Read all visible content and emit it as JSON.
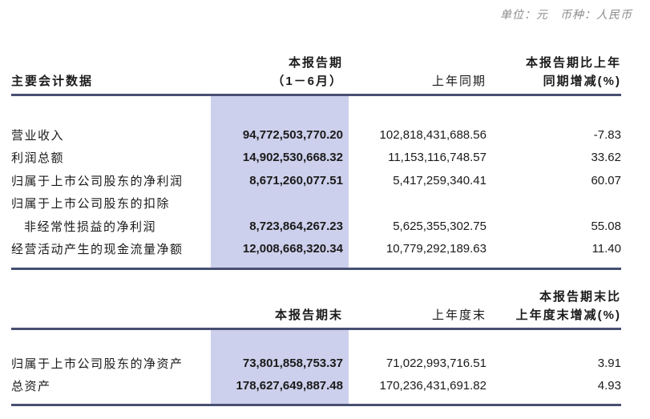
{
  "meta": {
    "unit_note": "单位：元　币种：人民币"
  },
  "colors": {
    "band": "#cdd0ec",
    "rule": "#474f72",
    "unit_text": "#8c8c8c",
    "text": "#1a1a1a"
  },
  "table1": {
    "header": {
      "label_col": "主要会计数据",
      "current_col_line1": "本报告期",
      "current_col_line2": "（1－6月）",
      "prior_col": "上年同期",
      "change_col_line1": "本报告期比上年",
      "change_col_line2": "同期增减(%)"
    },
    "rows": [
      {
        "label": "营业收入",
        "current": "94,772,503,770.20",
        "prior": "102,818,431,688.56",
        "change": "-7.83"
      },
      {
        "label": "利润总额",
        "current": "14,902,530,668.32",
        "prior": "11,153,116,748.57",
        "change": "33.62"
      },
      {
        "label": "归属于上市公司股东的净利润",
        "current": "8,671,260,077.51",
        "prior": "5,417,259,340.41",
        "change": "60.07"
      },
      {
        "label": "归属于上市公司股东的扣除",
        "current": "",
        "prior": "",
        "change": ""
      },
      {
        "label": "非经常性损益的净利润",
        "current": "8,723,864,267.23",
        "prior": "5,625,355,302.75",
        "change": "55.08"
      },
      {
        "label": "经营活动产生的现金流量净额",
        "current": "12,008,668,320.34",
        "prior": "10,779,292,189.63",
        "change": "11.40"
      }
    ]
  },
  "table2": {
    "header": {
      "label_col": "",
      "current_col": "本报告期末",
      "prior_col": "上年度末",
      "change_col_line1": "本报告期末比",
      "change_col_line2": "上年度末增减(%)"
    },
    "rows": [
      {
        "label": "归属于上市公司股东的净资产",
        "current": "73,801,858,753.37",
        "prior": "71,022,993,716.51",
        "change": "3.91"
      },
      {
        "label": "总资产",
        "current": "178,627,649,887.48",
        "prior": "170,236,431,691.82",
        "change": "4.93"
      }
    ]
  }
}
